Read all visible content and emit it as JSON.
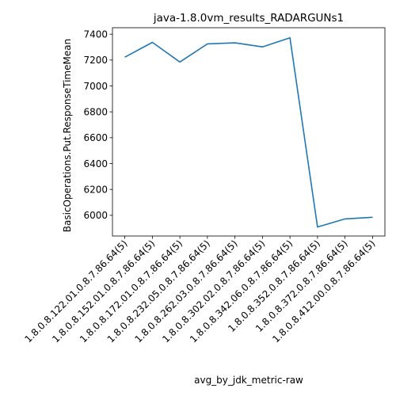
{
  "chart_data": {
    "type": "line",
    "title": "java-1.8.0vm_results_RADARGUNs1",
    "xlabel": "avg_by_jdk_metric-raw",
    "ylabel": "BasicOperations.Put.ResponseTimeMean",
    "categories": [
      "1.8.0.8.122.01.0.8.7.86.64(5)",
      "1.8.0.8.152.01.0.8.7.86.64(5)",
      "1.8.0.8.172.01.0.8.7.86.64(5)",
      "1.8.0.8.232.05.0.8.7.86.64(5)",
      "1.8.0.8.262.03.0.8.7.86.64(5)",
      "1.8.0.8.302.02.0.8.7.86.64(5)",
      "1.8.0.8.342.06.0.8.7.86.64(5)",
      "1.8.0.8.352.0.8.7.86.64(5)",
      "1.8.0.8.372.0.8.7.86.64(5)",
      "1.8.0.8.412.00.0.8.7.86.64(5)"
    ],
    "series": [
      {
        "values": [
          7222,
          7337,
          7185,
          7325,
          7333,
          7302,
          7372,
          5910,
          5972,
          5985
        ],
        "color": "#1f77b4"
      }
    ],
    "ylim": [
      5840,
      7450
    ],
    "yticks": [
      6000,
      6200,
      6400,
      6600,
      6800,
      7000,
      7200,
      7400
    ],
    "grid": false,
    "legend": "none"
  }
}
